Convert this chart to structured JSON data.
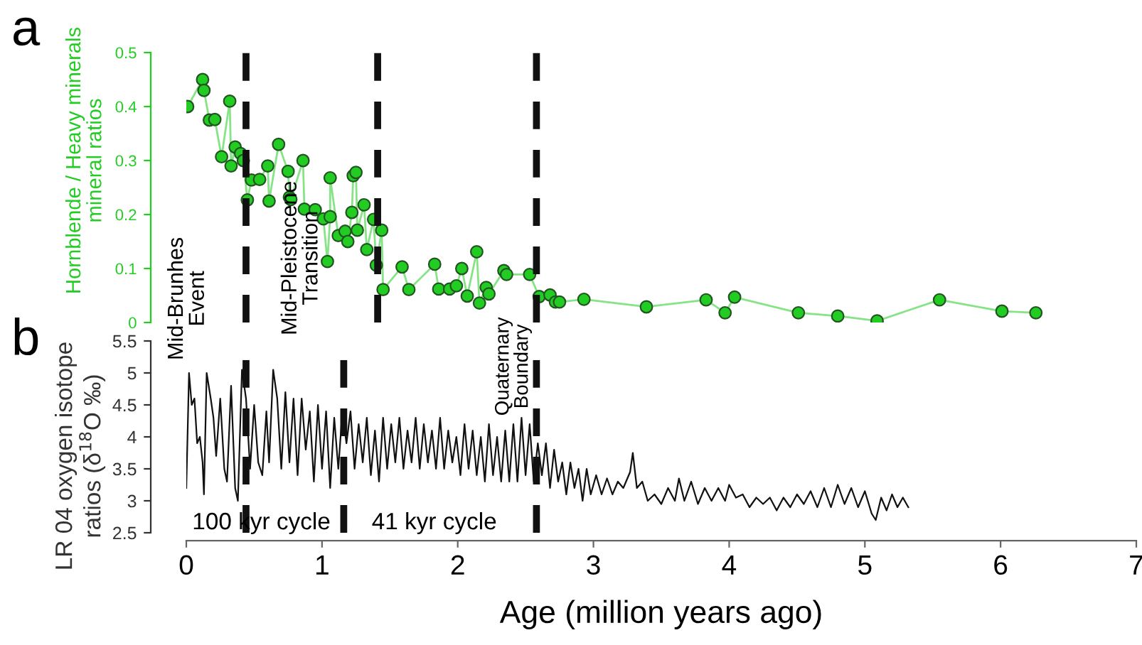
{
  "chart_data": [
    {
      "type": "line",
      "ylabel": "Hornblende / Heavy minerals\nmineral ratios",
      "marker": "circle",
      "xlim": [
        0,
        7
      ],
      "ylim": [
        0,
        0.5
      ],
      "yticks": [
        0,
        0.1,
        0.2,
        0.3,
        0.4,
        0.5
      ],
      "tick_labels": "y",
      "annotations": [
        "a"
      ],
      "ref_lines": [
        {
          "axis": "x",
          "value": 0.44,
          "color": "#111111",
          "line_style": "dashed"
        },
        {
          "axis": "x",
          "value": 1.41,
          "color": "#111111",
          "line_style": "dashed"
        },
        {
          "axis": "x",
          "value": 2.58,
          "color": "#111111",
          "line_style": "dashed"
        }
      ],
      "series": [
        {
          "color": "#22cc22",
          "x": [
            0.01,
            0.12,
            0.13,
            0.17,
            0.21,
            0.26,
            0.32,
            0.33,
            0.36,
            0.4,
            0.42,
            0.45,
            0.48,
            0.54,
            0.6,
            0.61,
            0.68,
            0.75,
            0.76,
            0.77,
            0.86,
            0.87,
            0.95,
            1.01,
            1.04,
            1.06,
            1.06,
            1.12,
            1.17,
            1.19,
            1.22,
            1.23,
            1.25,
            1.26,
            1.31,
            1.33,
            1.38,
            1.4,
            1.44,
            1.45,
            1.59,
            1.64,
            1.83,
            1.86,
            1.94,
            1.99,
            2.03,
            2.07,
            2.14,
            2.16,
            2.21,
            2.23,
            2.34,
            2.36,
            2.53,
            2.6,
            2.68,
            2.72,
            2.75,
            2.93,
            3.39,
            3.83,
            3.97,
            4.04,
            4.51,
            4.8,
            5.09,
            5.55,
            6.01,
            6.26
          ],
          "values": [
            0.4,
            0.45,
            0.43,
            0.375,
            0.376,
            0.307,
            0.41,
            0.29,
            0.325,
            0.313,
            0.3,
            0.227,
            0.264,
            0.265,
            0.29,
            0.225,
            0.33,
            0.28,
            0.232,
            0.228,
            0.3,
            0.21,
            0.209,
            0.192,
            0.113,
            0.196,
            0.268,
            0.161,
            0.169,
            0.15,
            0.204,
            0.272,
            0.278,
            0.171,
            0.218,
            0.135,
            0.191,
            0.106,
            0.171,
            0.061,
            0.103,
            0.061,
            0.108,
            0.062,
            0.062,
            0.068,
            0.1,
            0.049,
            0.131,
            0.036,
            0.065,
            0.053,
            0.096,
            0.089,
            0.089,
            0.048,
            0.051,
            0.038,
            0.038,
            0.043,
            0.029,
            0.042,
            0.018,
            0.047,
            0.018,
            0.012,
            0.003,
            0.042,
            0.021,
            0.018
          ]
        }
      ]
    },
    {
      "type": "line",
      "ylabel": "LR 04 oxygen isotope\nratios (δ$^{18}$O ‰)",
      "xlabel": "Age (million years ago)",
      "marker": "none",
      "xlim": [
        0,
        7
      ],
      "xticks": [
        0,
        1,
        2,
        3,
        4,
        5,
        6,
        7
      ],
      "ylim": [
        2.5,
        5.5
      ],
      "yticks": [
        2.5,
        3,
        3.5,
        4,
        4.5,
        5,
        5.5
      ],
      "annotations": [
        "b",
        "Mid-Brunhes\nEvent",
        "Mid-Pleistocene\nTransition",
        "Quaternary\nBoundary",
        "100 kyr cycle",
        "41 kyr cycle"
      ],
      "ref_lines": [
        {
          "axis": "x",
          "value": 0.44,
          "color": "#111111",
          "line_style": "dashed"
        },
        {
          "axis": "x",
          "value": 1.16,
          "color": "#111111",
          "line_style": "dashed"
        },
        {
          "axis": "x",
          "value": 2.58,
          "color": "#111111",
          "line_style": "dashed"
        }
      ],
      "series": [
        {
          "color": "#111111",
          "x": [
            0.0,
            0.02,
            0.04,
            0.06,
            0.08,
            0.1,
            0.12,
            0.13,
            0.15,
            0.18,
            0.2,
            0.22,
            0.25,
            0.28,
            0.3,
            0.33,
            0.36,
            0.38,
            0.41,
            0.44,
            0.47,
            0.5,
            0.53,
            0.56,
            0.59,
            0.61,
            0.64,
            0.67,
            0.7,
            0.73,
            0.76,
            0.79,
            0.82,
            0.85,
            0.88,
            0.91,
            0.94,
            0.97,
            1.0,
            1.03,
            1.06,
            1.09,
            1.12,
            1.15,
            1.18,
            1.21,
            1.24,
            1.27,
            1.3,
            1.33,
            1.36,
            1.39,
            1.42,
            1.45,
            1.48,
            1.51,
            1.54,
            1.57,
            1.6,
            1.63,
            1.66,
            1.69,
            1.72,
            1.75,
            1.78,
            1.81,
            1.84,
            1.87,
            1.9,
            1.93,
            1.96,
            1.99,
            2.02,
            2.05,
            2.08,
            2.11,
            2.14,
            2.17,
            2.2,
            2.23,
            2.26,
            2.29,
            2.32,
            2.35,
            2.38,
            2.41,
            2.44,
            2.47,
            2.5,
            2.53,
            2.56,
            2.59,
            2.62,
            2.65,
            2.68,
            2.71,
            2.74,
            2.77,
            2.8,
            2.83,
            2.86,
            2.89,
            2.92,
            2.95,
            2.98,
            3.02,
            3.06,
            3.1,
            3.14,
            3.18,
            3.22,
            3.27,
            3.29,
            3.32,
            3.36,
            3.4,
            3.45,
            3.5,
            3.55,
            3.6,
            3.63,
            3.67,
            3.72,
            3.77,
            3.82,
            3.87,
            3.92,
            3.97,
            4.0,
            4.05,
            4.1,
            4.15,
            4.2,
            4.25,
            4.3,
            4.35,
            4.4,
            4.45,
            4.5,
            4.55,
            4.6,
            4.65,
            4.7,
            4.75,
            4.8,
            4.85,
            4.9,
            4.95,
            5.0,
            5.05,
            5.08,
            5.12,
            5.16,
            5.2,
            5.24,
            5.28,
            5.32
          ],
          "values": [
            3.2,
            5.0,
            4.5,
            4.6,
            3.9,
            4.0,
            3.6,
            3.1,
            5.0,
            4.6,
            4.3,
            3.7,
            4.6,
            3.5,
            3.3,
            4.8,
            3.2,
            3.0,
            5.05,
            4.6,
            3.5,
            4.5,
            3.6,
            3.4,
            4.4,
            3.6,
            5.05,
            4.6,
            3.5,
            4.7,
            3.6,
            4.6,
            3.4,
            4.6,
            3.8,
            4.4,
            3.3,
            4.5,
            3.5,
            4.4,
            3.2,
            4.3,
            3.5,
            4.4,
            3.9,
            4.4,
            3.5,
            4.2,
            3.6,
            4.3,
            3.4,
            4.1,
            3.3,
            4.3,
            3.5,
            4.2,
            3.6,
            4.3,
            3.5,
            4.1,
            3.6,
            4.3,
            3.5,
            4.2,
            3.6,
            4.1,
            3.5,
            4.3,
            3.5,
            4.1,
            3.6,
            4.0,
            3.4,
            4.2,
            3.5,
            4.1,
            3.4,
            4.0,
            3.3,
            4.2,
            3.4,
            4.0,
            3.3,
            4.1,
            3.3,
            4.2,
            3.3,
            4.3,
            3.4,
            4.2,
            3.3,
            3.9,
            3.4,
            3.9,
            3.2,
            3.8,
            3.3,
            3.6,
            3.1,
            3.6,
            3.2,
            3.5,
            3.0,
            3.5,
            3.1,
            3.4,
            3.1,
            3.35,
            3.1,
            3.3,
            3.2,
            3.45,
            3.75,
            3.2,
            3.3,
            3.0,
            3.1,
            2.95,
            3.2,
            3.0,
            3.35,
            3.0,
            3.3,
            2.95,
            3.2,
            3.0,
            3.2,
            3.0,
            3.25,
            3.05,
            3.1,
            2.9,
            3.05,
            2.95,
            3.05,
            2.85,
            3.05,
            2.9,
            3.1,
            2.95,
            3.15,
            2.9,
            3.2,
            2.9,
            3.25,
            2.95,
            3.2,
            2.9,
            3.15,
            2.8,
            2.7,
            3.05,
            2.85,
            3.1,
            2.9,
            3.05,
            2.9
          ]
        }
      ]
    }
  ]
}
